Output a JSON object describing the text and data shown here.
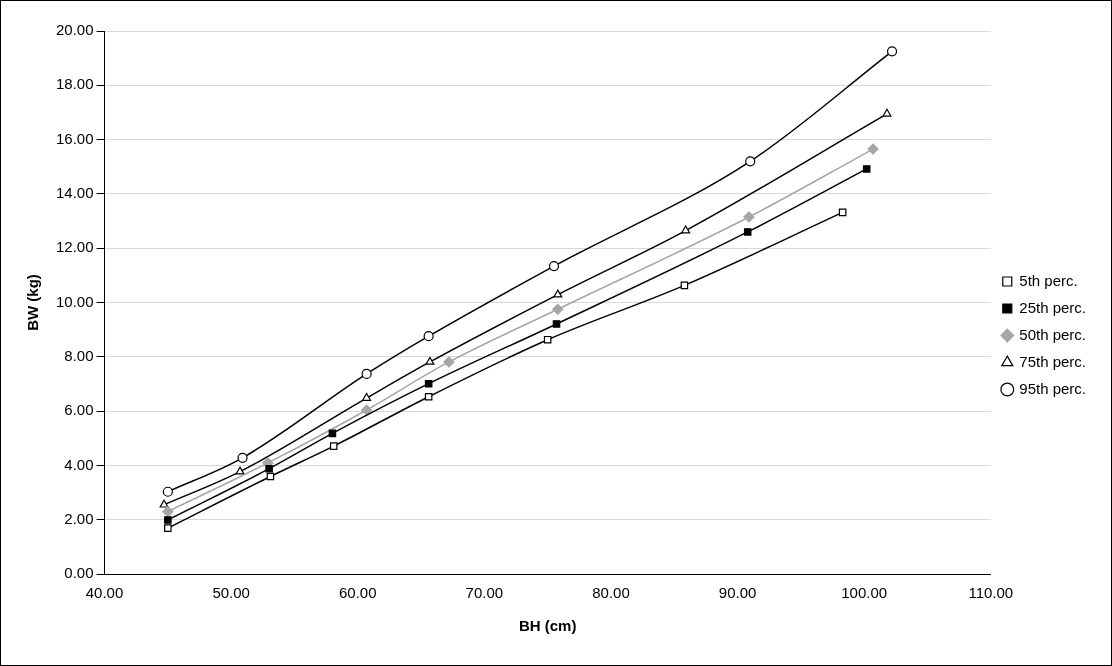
{
  "chart_data": {
    "type": "line",
    "xlabel": "BH (cm)",
    "ylabel": "BW (kg)",
    "xlim": [
      40,
      110
    ],
    "ylim": [
      0,
      20
    ],
    "xticks": [
      {
        "value": 40,
        "label": "40.00"
      },
      {
        "value": 50,
        "label": "50.00"
      },
      {
        "value": 60,
        "label": "60.00"
      },
      {
        "value": 70,
        "label": "70.00"
      },
      {
        "value": 80,
        "label": "80.00"
      },
      {
        "value": 90,
        "label": "90.00"
      },
      {
        "value": 100,
        "label": "100.00"
      },
      {
        "value": 110,
        "label": "110.00"
      }
    ],
    "yticks": [
      {
        "value": 0,
        "label": "0.00"
      },
      {
        "value": 2,
        "label": "2.00"
      },
      {
        "value": 4,
        "label": "4.00"
      },
      {
        "value": 6,
        "label": "6.00"
      },
      {
        "value": 8,
        "label": "8.00"
      },
      {
        "value": 10,
        "label": "10.00"
      },
      {
        "value": 12,
        "label": "12.00"
      },
      {
        "value": 14,
        "label": "14.00"
      },
      {
        "value": 16,
        "label": "16.00"
      },
      {
        "value": 18,
        "label": "18.00"
      },
      {
        "value": 20,
        "label": "20.00"
      }
    ],
    "grid": "y",
    "legend": "right",
    "line_style": "solid",
    "series": [
      {
        "name": "5th perc.",
        "color": "#000000",
        "marker": "square",
        "x": [
          45.0,
          53.1,
          58.1,
          65.6,
          75.0,
          85.8,
          98.3
        ],
        "values": [
          1.69,
          3.59,
          4.71,
          6.53,
          8.63,
          10.63,
          13.32
        ]
      },
      {
        "name": "25th perc.",
        "color": "#000000",
        "marker": "square",
        "x": [
          45.0,
          53.0,
          58.0,
          65.6,
          75.7,
          90.8,
          100.2
        ],
        "values": [
          1.99,
          3.88,
          5.18,
          7.01,
          9.21,
          12.6,
          14.92
        ]
      },
      {
        "name": "50th perc.",
        "color": "#a6a6a6",
        "marker": "diamond",
        "x": [
          45.0,
          52.9,
          60.7,
          67.2,
          75.8,
          90.9,
          100.7
        ],
        "values": [
          2.3,
          4.09,
          6.04,
          7.81,
          9.75,
          13.15,
          15.65
        ]
      },
      {
        "name": "75th perc.",
        "color": "#000000",
        "marker": "triangle",
        "x": [
          44.7,
          50.7,
          60.7,
          65.7,
          75.8,
          85.9,
          101.8
        ],
        "values": [
          2.55,
          3.77,
          6.48,
          7.81,
          10.29,
          12.65,
          16.95
        ]
      },
      {
        "name": "95th perc.",
        "color": "#000000",
        "marker": "circle",
        "x": [
          45.0,
          50.9,
          60.7,
          65.6,
          75.5,
          91.0,
          102.2
        ],
        "values": [
          3.03,
          4.28,
          7.37,
          8.76,
          11.34,
          15.2,
          19.25
        ]
      }
    ]
  }
}
